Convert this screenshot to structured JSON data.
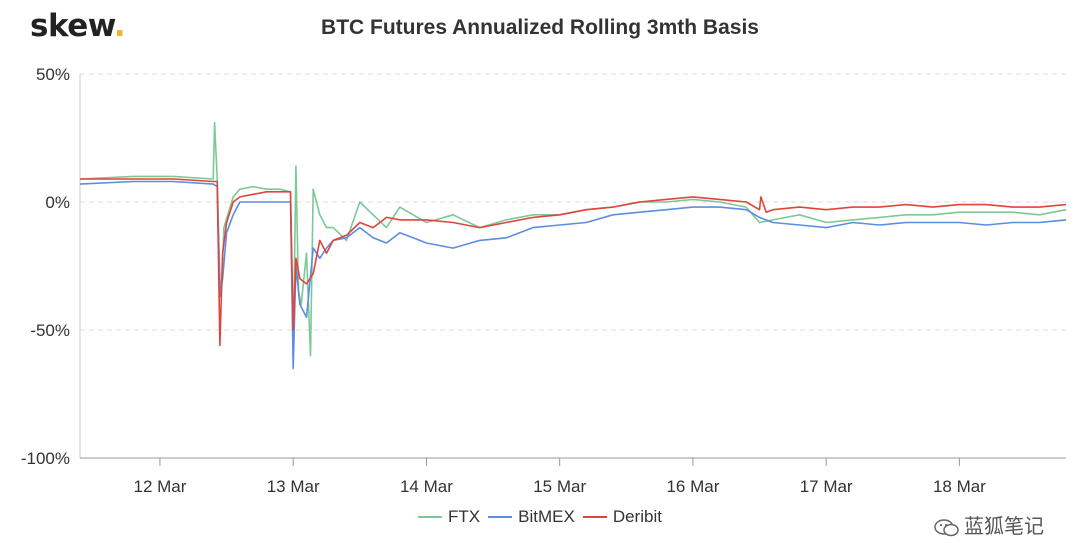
{
  "logo": {
    "text": "skew",
    "dot": "."
  },
  "watermark": {
    "text": "蓝狐笔记",
    "icon": "wechat-bubble-icon"
  },
  "chart_data": {
    "type": "line",
    "title": "BTC Futures Annualized Rolling 3mth Basis",
    "xlabel": "",
    "ylabel": "",
    "x_tick_labels": [
      "12 Mar",
      "13 Mar",
      "14 Mar",
      "15 Mar",
      "16 Mar",
      "17 Mar",
      "18 Mar"
    ],
    "x_tick_days": [
      12,
      13,
      14,
      15,
      16,
      17,
      18
    ],
    "xlim": [
      11.4,
      18.8
    ],
    "y_tick_labels": [
      "50%",
      "0%",
      "-50%",
      "-100%"
    ],
    "y_tick_values": [
      50,
      0,
      -50,
      -100
    ],
    "ylim": [
      -100,
      50
    ],
    "grid": "horizontal dashed",
    "legend": "bottom-center",
    "x_unit": "day of March",
    "y_unit": "%",
    "series": [
      {
        "name": "FTX",
        "color": "#7cc996",
        "x": [
          11.4,
          11.8,
          12.1,
          12.4,
          12.41,
          12.43,
          12.45,
          12.46,
          12.48,
          12.55,
          12.6,
          12.7,
          12.8,
          12.9,
          12.98,
          13.0,
          13.02,
          13.04,
          13.06,
          13.1,
          13.13,
          13.15,
          13.2,
          13.25,
          13.3,
          13.4,
          13.5,
          13.6,
          13.7,
          13.8,
          13.9,
          14.0,
          14.2,
          14.4,
          14.6,
          14.8,
          15.0,
          15.2,
          15.4,
          15.6,
          15.8,
          16.0,
          16.2,
          16.4,
          16.5,
          16.6,
          16.8,
          17.0,
          17.2,
          17.4,
          17.6,
          17.8,
          18.0,
          18.2,
          18.4,
          18.6,
          18.8
        ],
        "y": [
          9,
          10,
          10,
          9,
          31,
          9,
          -30,
          -37,
          -10,
          2,
          5,
          6,
          5,
          5,
          4,
          -60,
          14,
          -35,
          -40,
          -20,
          -60,
          5,
          -5,
          -10,
          -10,
          -15,
          0,
          -5,
          -10,
          -2,
          -5,
          -8,
          -5,
          -10,
          -7,
          -5,
          -5,
          -3,
          -2,
          0,
          0,
          1,
          0,
          -2,
          -8,
          -7,
          -5,
          -8,
          -7,
          -6,
          -5,
          -5,
          -4,
          -4,
          -4,
          -5,
          -3
        ]
      },
      {
        "name": "BitMEX",
        "color": "#5b8de0",
        "x": [
          11.4,
          11.8,
          12.1,
          12.4,
          12.43,
          12.45,
          12.47,
          12.5,
          12.55,
          12.6,
          12.7,
          12.8,
          12.9,
          12.98,
          13.0,
          13.02,
          13.05,
          13.1,
          13.15,
          13.2,
          13.25,
          13.3,
          13.4,
          13.5,
          13.6,
          13.7,
          13.8,
          13.9,
          14.0,
          14.2,
          14.4,
          14.6,
          14.8,
          15.0,
          15.2,
          15.4,
          15.6,
          15.8,
          16.0,
          16.2,
          16.4,
          16.5,
          16.6,
          16.8,
          17.0,
          17.2,
          17.4,
          17.6,
          17.8,
          18.0,
          18.2,
          18.4,
          18.6,
          18.8
        ],
        "y": [
          7,
          8,
          8,
          7,
          6,
          -37,
          -30,
          -12,
          -5,
          0,
          0,
          0,
          0,
          0,
          -65,
          -25,
          -40,
          -45,
          -18,
          -22,
          -18,
          -15,
          -14,
          -10,
          -14,
          -16,
          -12,
          -14,
          -16,
          -18,
          -15,
          -14,
          -10,
          -9,
          -8,
          -5,
          -4,
          -3,
          -2,
          -2,
          -3,
          -6,
          -8,
          -9,
          -10,
          -8,
          -9,
          -8,
          -8,
          -8,
          -9,
          -8,
          -8,
          -7
        ]
      },
      {
        "name": "Deribit",
        "color": "#e0443c",
        "x": [
          11.4,
          11.8,
          12.1,
          12.4,
          12.43,
          12.45,
          12.47,
          12.5,
          12.55,
          12.6,
          12.7,
          12.8,
          12.9,
          12.98,
          13.0,
          13.02,
          13.05,
          13.1,
          13.15,
          13.2,
          13.25,
          13.3,
          13.4,
          13.5,
          13.6,
          13.7,
          13.8,
          13.9,
          14.0,
          14.2,
          14.4,
          14.6,
          14.8,
          15.0,
          15.2,
          15.4,
          15.6,
          15.8,
          16.0,
          16.2,
          16.4,
          16.5,
          16.51,
          16.55,
          16.6,
          16.8,
          17.0,
          17.2,
          17.4,
          17.6,
          17.8,
          18.0,
          18.2,
          18.4,
          18.6,
          18.8
        ],
        "y": [
          9,
          9,
          9,
          8,
          8,
          -56,
          -20,
          -8,
          0,
          2,
          3,
          4,
          4,
          4,
          -50,
          -22,
          -30,
          -32,
          -28,
          -15,
          -20,
          -15,
          -13,
          -8,
          -10,
          -6,
          -7,
          -7,
          -7,
          -8,
          -10,
          -8,
          -6,
          -5,
          -3,
          -2,
          0,
          1,
          2,
          1,
          0,
          -3,
          2,
          -4,
          -3,
          -2,
          -3,
          -2,
          -2,
          -1,
          -2,
          -1,
          -1,
          -2,
          -2,
          -1
        ]
      }
    ]
  }
}
